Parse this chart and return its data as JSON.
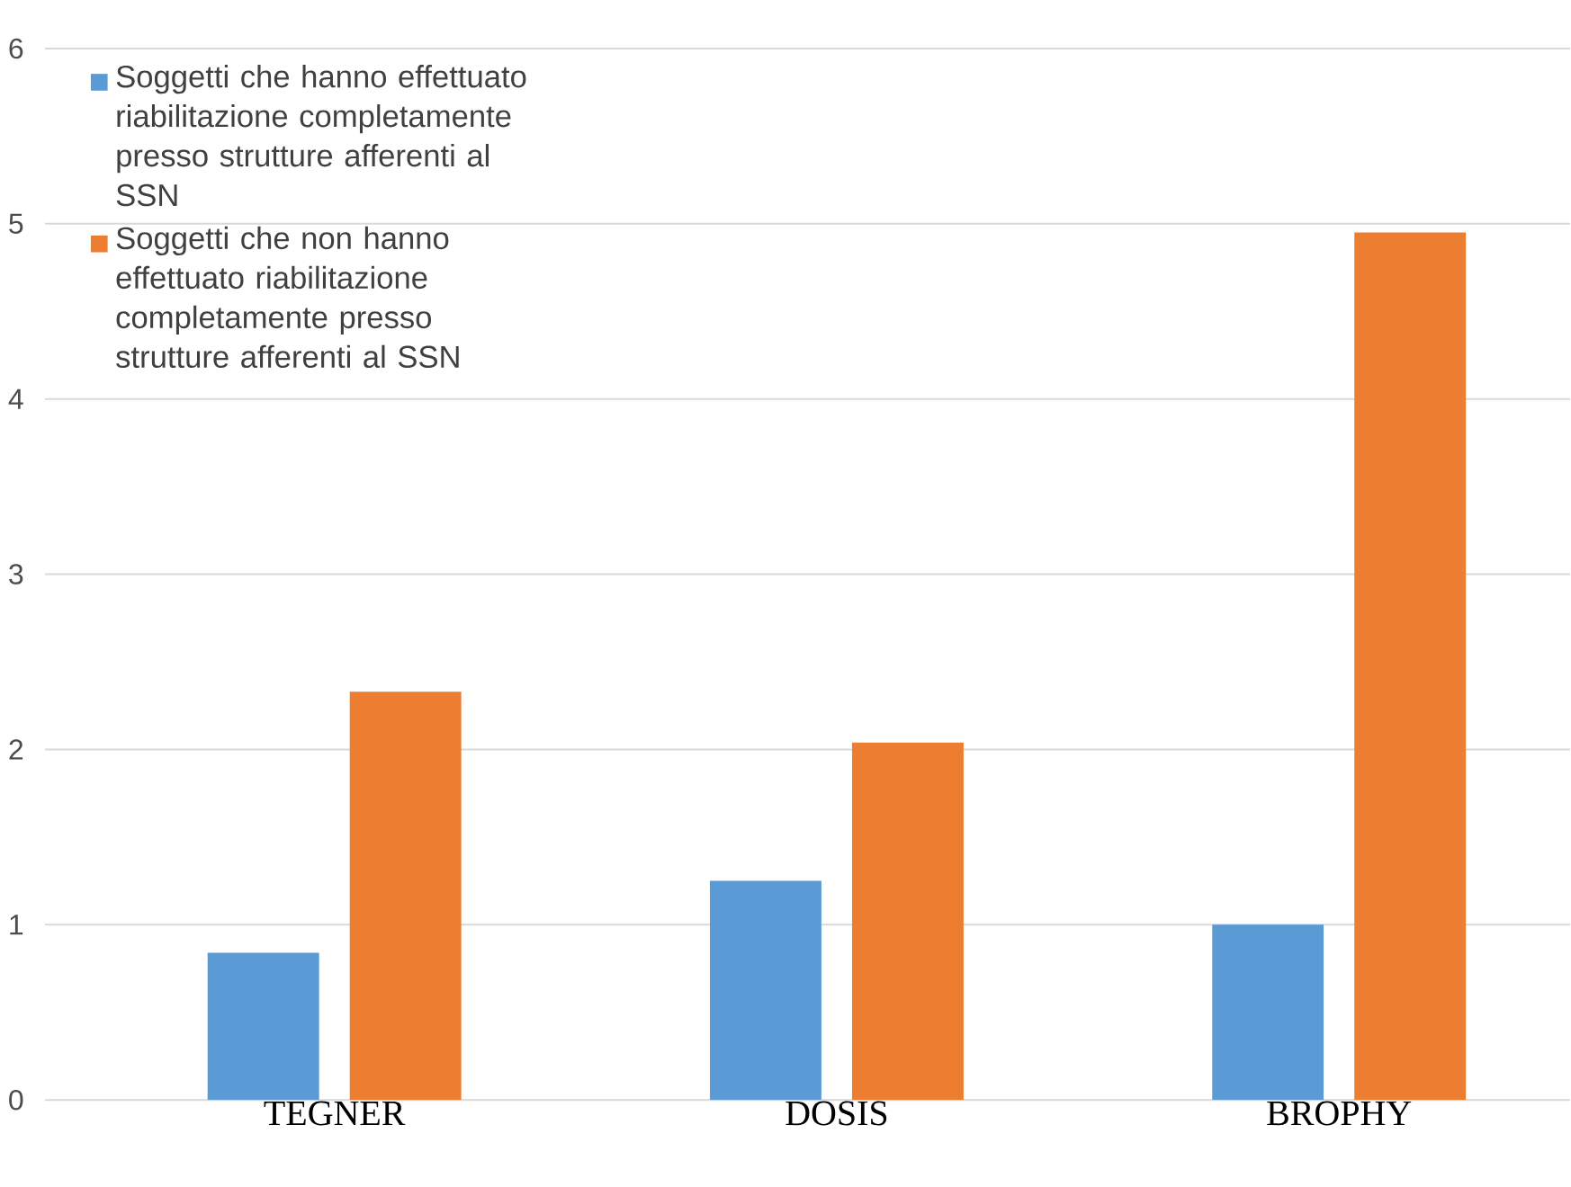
{
  "chart_data": {
    "type": "bar",
    "categories": [
      "TEGNER",
      "DOSIS",
      "BROPHY"
    ],
    "series": [
      {
        "name": "Soggetti che hanno effettuato riabilitazione completamente presso strutture afferenti al SSN",
        "color": "#5b9bd5",
        "values": [
          0.84,
          1.25,
          1.0
        ]
      },
      {
        "name": "Soggetti che non hanno effettuato riabilitazione completamente presso strutture afferenti al SSN",
        "color": "#ed7d31",
        "values": [
          2.33,
          2.04,
          4.95
        ]
      }
    ],
    "ylim": [
      0,
      6
    ],
    "yticks": [
      0,
      1,
      2,
      3,
      4,
      5,
      6
    ],
    "grid": "y",
    "legend": "top left"
  }
}
